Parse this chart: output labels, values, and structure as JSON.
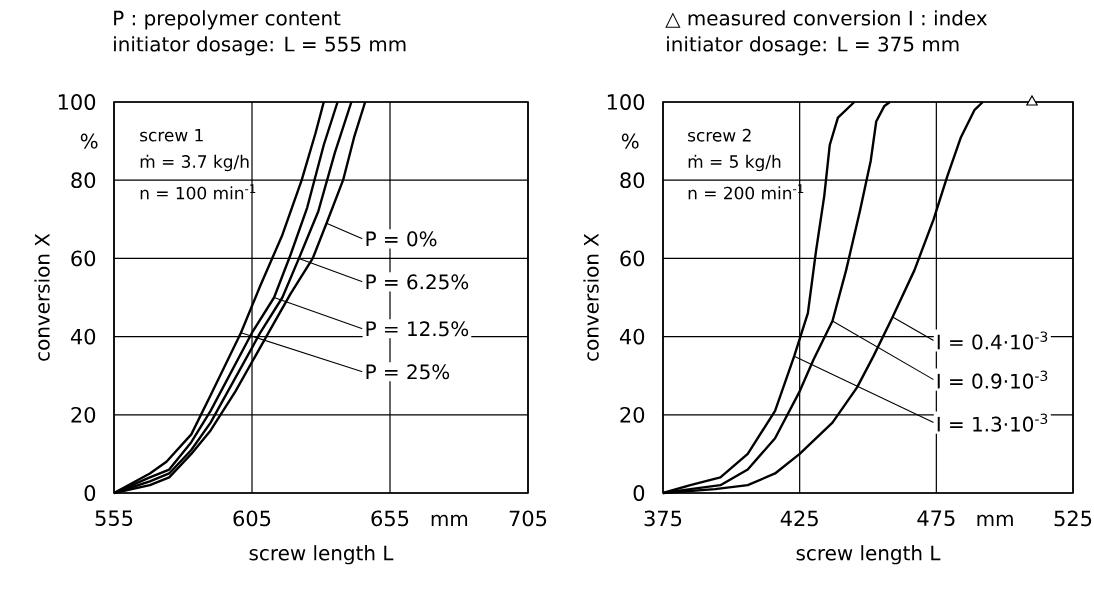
{
  "chart_data": [
    {
      "type": "line",
      "title": "P : prepolymer content",
      "subtitle": "initiator dosage: L = 555 mm",
      "xlabel": "screw length L",
      "ylabel": "conversion X",
      "xlim": [
        555,
        705
      ],
      "ylim": [
        0,
        100
      ],
      "xticks": [
        555,
        605,
        655,
        705
      ],
      "yticks": [
        0,
        20,
        40,
        60,
        80,
        100
      ],
      "grid": true,
      "legend": "right",
      "marker": "none",
      "line_style": "solid",
      "annotations": [
        "screw 1",
        "ṁ = 3.7 kg/h",
        "n = 100 min$^{-1}$",
        "%",
        "mm"
      ],
      "series": [
        {
          "name": "P = 0%",
          "color": "#000000",
          "x": [
            555,
            568,
            575,
            583,
            590,
            599,
            611,
            619,
            627,
            632,
            638,
            642,
            646
          ],
          "values": [
            0,
            2,
            4,
            10,
            16,
            26,
            41,
            51,
            60,
            69,
            80,
            91,
            100
          ]
        },
        {
          "name": "P = 6.25%",
          "color": "#000000",
          "x": [
            555,
            568,
            575,
            583,
            590,
            608,
            616,
            622,
            629,
            635,
            641
          ],
          "values": [
            0,
            3,
            5,
            11,
            18,
            41,
            50,
            60,
            72,
            87,
            100
          ]
        },
        {
          "name": "P = 12.5%",
          "color": "#000000",
          "x": [
            555,
            568,
            575,
            583,
            590,
            605,
            613,
            619,
            625,
            631,
            636
          ],
          "values": [
            0,
            4,
            6,
            13,
            21,
            41,
            50,
            61,
            73,
            89,
            100
          ]
        },
        {
          "name": "P = 25%",
          "color": "#000000",
          "x": [
            555,
            568,
            574,
            583,
            590,
            601,
            608,
            616,
            623,
            628,
            631
          ],
          "values": [
            0,
            5,
            8,
            15,
            25,
            41,
            53,
            66,
            80,
            92,
            100
          ]
        }
      ]
    },
    {
      "type": "line",
      "title": "△ measured conversion I : index",
      "subtitle": "initiator dosage: L = 375 mm",
      "xlabel": "screw length L",
      "ylabel": "conversion X",
      "xlim": [
        375,
        525
      ],
      "ylim": [
        0,
        100
      ],
      "xticks": [
        375,
        425,
        475,
        525
      ],
      "yticks": [
        0,
        20,
        40,
        60,
        80,
        100
      ],
      "grid": true,
      "legend": "right",
      "marker": "none",
      "line_style": "solid",
      "annotations": [
        "screw 2",
        "ṁ = 5 kg/h",
        "n = 200 min$^{-1}$",
        "%",
        "mm"
      ],
      "series": [
        {
          "name": "I = 0.4·10$^{-3}$",
          "color": "#000000",
          "x": [
            375,
            394,
            406,
            416,
            425,
            437,
            446,
            452,
            459,
            467,
            474,
            479,
            484,
            489,
            492
          ],
          "values": [
            0,
            1,
            2,
            5,
            10,
            18,
            27,
            35,
            45,
            57,
            70,
            81,
            91,
            98,
            100
          ]
        },
        {
          "name": "I = 0.9·10$^{-3}$",
          "color": "#000000",
          "x": [
            375,
            385,
            396,
            406,
            416,
            425,
            430,
            437,
            442,
            447,
            451,
            453,
            456,
            458
          ],
          "values": [
            0,
            1,
            2,
            6,
            14,
            26,
            34,
            44,
            57,
            72,
            85,
            95,
            99,
            100
          ]
        },
        {
          "name": "I = 1.3·10$^{-3}$",
          "color": "#000000",
          "x": [
            375,
            385,
            396,
            406,
            416,
            423,
            428,
            431,
            434,
            436,
            439,
            445
          ],
          "values": [
            0,
            2,
            4,
            10,
            21,
            35,
            46,
            62,
            76,
            89,
            96,
            100
          ]
        },
        {
          "type": "scatter",
          "marker": "triangle",
          "color": "#000000",
          "x": [
            510
          ],
          "values": [
            100
          ]
        }
      ]
    }
  ]
}
